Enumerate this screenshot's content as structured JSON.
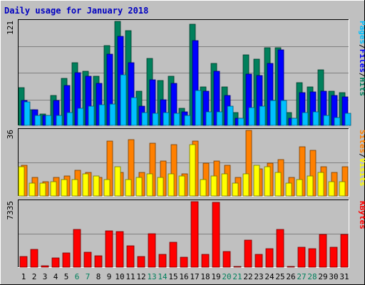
{
  "title": "Daily usage for January 2018",
  "colors": {
    "background": "#C0C0C0",
    "title": "#0000C0",
    "hits": "#00805C",
    "files": "#0000FF",
    "pages": "#00C0FF",
    "visits": "#FFFF00",
    "sites": "#FF8000",
    "kbytes": "#FF0000",
    "weekend_label": "#00805C",
    "weekday_label": "#000000"
  },
  "legends": {
    "top": [
      {
        "text": "Pages",
        "color": "#00C0FF"
      },
      {
        "text": "/",
        "color": "#000000"
      },
      {
        "text": "Files",
        "color": "#0000FF"
      },
      {
        "text": "/",
        "color": "#000000"
      },
      {
        "text": "Hits",
        "color": "#00805C"
      }
    ],
    "middle": [
      {
        "text": "Sites",
        "color": "#FF8000"
      },
      {
        "text": "/",
        "color": "#000000"
      },
      {
        "text": "Visits",
        "color": "#FFFF00"
      }
    ],
    "bottom": [
      {
        "text": "KBytes",
        "color": "#FF0000"
      }
    ]
  },
  "chart_data": [
    {
      "type": "bar",
      "panel": "top",
      "y_max_label": "121",
      "ylim": [
        0,
        121
      ],
      "grid": true,
      "categories": [
        "1",
        "2",
        "3",
        "4",
        "5",
        "6",
        "7",
        "8",
        "9",
        "10",
        "11",
        "12",
        "13",
        "14",
        "15",
        "16",
        "17",
        "18",
        "19",
        "20",
        "21",
        "22",
        "23",
        "24",
        "25",
        "26",
        "27",
        "28",
        "29",
        "30",
        "31"
      ],
      "weekend_days": [
        "6",
        "7",
        "13",
        "14",
        "20",
        "21",
        "27",
        "28"
      ],
      "series": [
        {
          "name": "Hits",
          "values": [
            44,
            18,
            13,
            35,
            55,
            73,
            63,
            57,
            93,
            121,
            110,
            40,
            78,
            52,
            57,
            20,
            118,
            45,
            72,
            45,
            15,
            82,
            77,
            90,
            90,
            15,
            50,
            45,
            65,
            40,
            38
          ]
        },
        {
          "name": "Files",
          "values": [
            29,
            18,
            12,
            29,
            46,
            61,
            57,
            49,
            83,
            104,
            73,
            22,
            53,
            30,
            49,
            16,
            99,
            40,
            63,
            35,
            8,
            60,
            58,
            72,
            88,
            8,
            38,
            39,
            40,
            35,
            33
          ]
        },
        {
          "name": "Pages",
          "values": [
            27,
            12,
            12,
            12,
            15,
            20,
            22,
            24,
            25,
            59,
            32,
            15,
            14,
            15,
            14,
            12,
            41,
            16,
            16,
            22,
            8,
            21,
            22,
            29,
            29,
            8,
            15,
            16,
            12,
            9,
            14
          ]
        }
      ]
    },
    {
      "type": "bar",
      "panel": "middle",
      "y_max_label": "36",
      "ylim": [
        0,
        36
      ],
      "grid": true,
      "categories": [
        "1",
        "2",
        "3",
        "4",
        "5",
        "6",
        "7",
        "8",
        "9",
        "10",
        "11",
        "12",
        "13",
        "14",
        "15",
        "16",
        "17",
        "18",
        "19",
        "20",
        "21",
        "22",
        "23",
        "24",
        "25",
        "26",
        "27",
        "28",
        "29",
        "30",
        "31"
      ],
      "series": [
        {
          "name": "Sites",
          "values": [
            17,
            10,
            8,
            10,
            11,
            14,
            13,
            10,
            30,
            13,
            31,
            13,
            29,
            19,
            28,
            12,
            30,
            18,
            19,
            17,
            10,
            36,
            15,
            18,
            20,
            10,
            27,
            25,
            16,
            13,
            16
          ]
        },
        {
          "name": "Visits",
          "values": [
            16,
            7,
            7,
            8,
            9,
            9,
            12,
            11,
            9,
            16,
            9,
            10,
            12,
            10,
            12,
            11,
            28,
            9,
            11,
            12,
            7,
            12,
            17,
            16,
            13,
            7,
            9,
            11,
            13,
            8,
            8
          ]
        }
      ]
    },
    {
      "type": "bar",
      "panel": "bottom",
      "y_max_label": "7335",
      "ylim": [
        0,
        7335
      ],
      "grid": true,
      "categories": [
        "1",
        "2",
        "3",
        "4",
        "5",
        "6",
        "7",
        "8",
        "9",
        "10",
        "11",
        "12",
        "13",
        "14",
        "15",
        "16",
        "17",
        "18",
        "19",
        "20",
        "21",
        "22",
        "23",
        "24",
        "25",
        "26",
        "27",
        "28",
        "29",
        "30",
        "31"
      ],
      "series": [
        {
          "name": "KBytes",
          "values": [
            1210,
            1985,
            160,
            1040,
            1630,
            4260,
            1700,
            1240,
            4100,
            3970,
            2410,
            1200,
            3730,
            1460,
            2780,
            1140,
            7335,
            1440,
            7220,
            1760,
            110,
            3030,
            1470,
            2100,
            4200,
            110,
            2260,
            2050,
            3700,
            2220,
            3690
          ]
        }
      ]
    }
  ]
}
